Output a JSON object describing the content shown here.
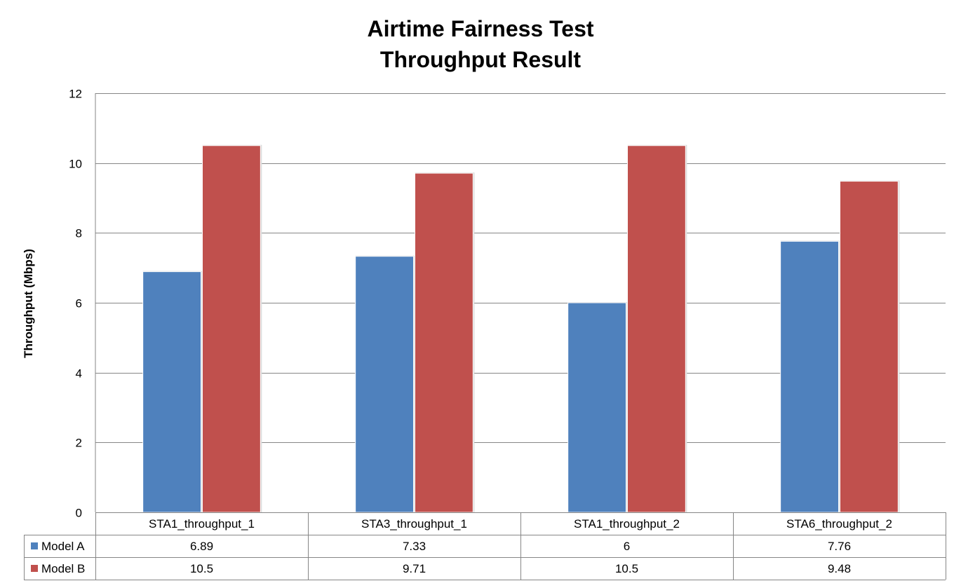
{
  "chart_data": {
    "type": "bar",
    "title": "Airtime Fairness Test",
    "subtitle": "Throughput Result",
    "xlabel": "",
    "ylabel": "Throughput  (Mbps)",
    "ylim": [
      0,
      12
    ],
    "yticks": [
      0,
      2,
      4,
      6,
      8,
      10,
      12
    ],
    "grid": true,
    "legend": "data-table",
    "categories": [
      "STA1_throughput_1",
      "STA3_throughput_1",
      "STA1_throughput_2",
      "STA6_throughput_2"
    ],
    "series": [
      {
        "name": "Model A",
        "color": "#4F81BD",
        "values": [
          6.89,
          7.33,
          6,
          7.76
        ],
        "labels": [
          "6.89",
          "7.33",
          "6",
          "7.76"
        ]
      },
      {
        "name": "Model B",
        "color": "#C0504D",
        "values": [
          10.5,
          9.71,
          10.5,
          9.48
        ],
        "labels": [
          "10.5",
          "9.71",
          "10.5",
          "9.48"
        ]
      }
    ]
  }
}
